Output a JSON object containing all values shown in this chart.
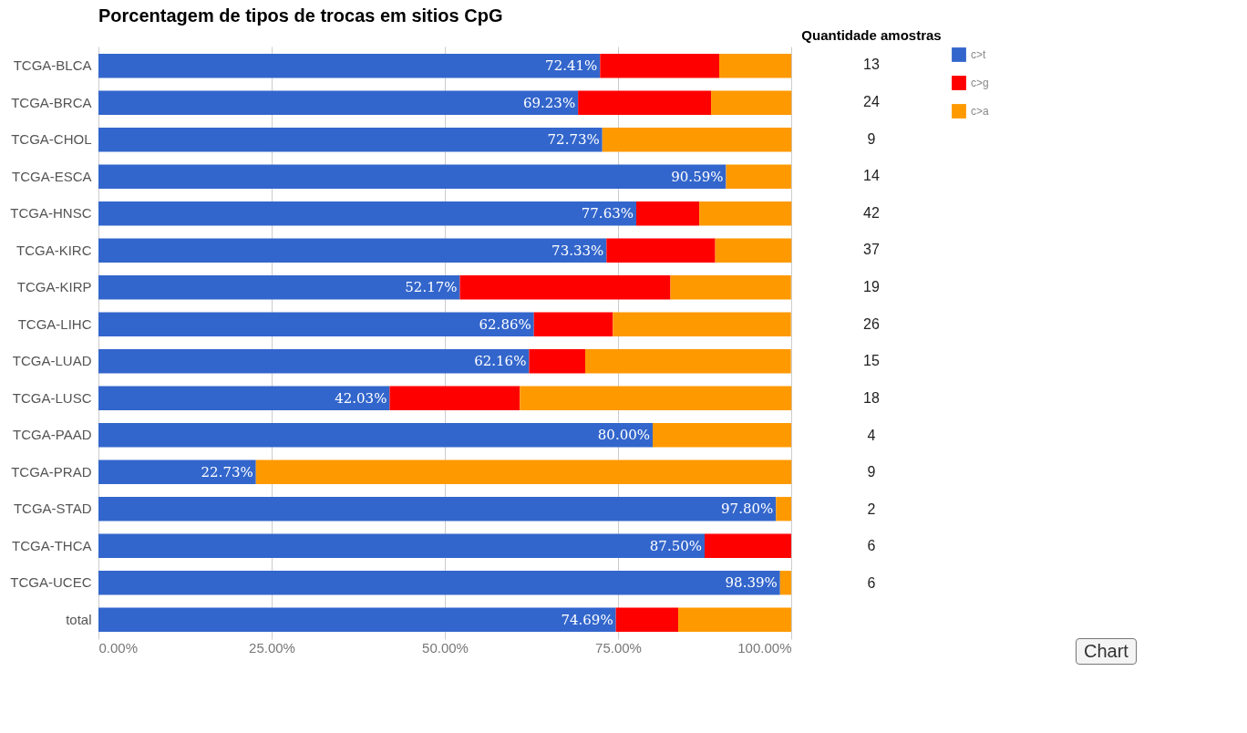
{
  "chart_data": {
    "type": "bar",
    "orientation": "horizontal",
    "stacked": true,
    "title": "Porcentagem de tipos de trocas em sitios CpG",
    "categories": [
      "TCGA-BLCA",
      "TCGA-BRCA",
      "TCGA-CHOL",
      "TCGA-ESCA",
      "TCGA-HNSC",
      "TCGA-KIRC",
      "TCGA-KIRP",
      "TCGA-LIHC",
      "TCGA-LUAD",
      "TCGA-LUSC",
      "TCGA-PAAD",
      "TCGA-PRAD",
      "TCGA-STAD",
      "TCGA-THCA",
      "TCGA-UCEC",
      "total"
    ],
    "series": [
      {
        "name": "c>t",
        "color": "#3366cc",
        "values": [
          72.41,
          69.23,
          72.73,
          90.59,
          77.63,
          73.33,
          52.17,
          62.86,
          62.16,
          42.03,
          80.0,
          22.73,
          97.8,
          87.5,
          98.39,
          74.69
        ],
        "value_labels": [
          "72.41%",
          "69.23%",
          "72.73%",
          "90.59%",
          "77.63%",
          "73.33%",
          "52.17%",
          "62.86%",
          "62.16%",
          "42.03%",
          "80.00%",
          "22.73%",
          "97.80%",
          "87.50%",
          "98.39%",
          "74.69%"
        ]
      },
      {
        "name": "c>g",
        "color": "#ff0000",
        "values": [
          17.2,
          19.2,
          0,
          0,
          9.1,
          15.7,
          30.4,
          11.4,
          8.1,
          18.8,
          0,
          0,
          0,
          12.5,
          0,
          9.0
        ]
      },
      {
        "name": "c>a",
        "color": "#ff9900",
        "values": [
          10.4,
          11.6,
          27.3,
          9.4,
          13.3,
          11.0,
          17.4,
          25.7,
          29.7,
          39.2,
          20.0,
          77.3,
          2.2,
          0,
          1.6,
          16.3
        ]
      }
    ],
    "xlim": [
      0,
      100
    ],
    "xticks": [
      {
        "value": 0,
        "label": "0.00%"
      },
      {
        "value": 25,
        "label": "25.00%"
      },
      {
        "value": 50,
        "label": "50.00%"
      },
      {
        "value": 75,
        "label": "75.00%"
      },
      {
        "value": 100,
        "label": "100.00%"
      }
    ],
    "grid": "x",
    "legend": "right",
    "annotations": [
      "Quantidade amostras",
      "13",
      "24",
      "9",
      "14",
      "42",
      "37",
      "19",
      "26",
      "15",
      "18",
      "4",
      "9",
      "2",
      "6",
      "6",
      "Chart"
    ]
  }
}
